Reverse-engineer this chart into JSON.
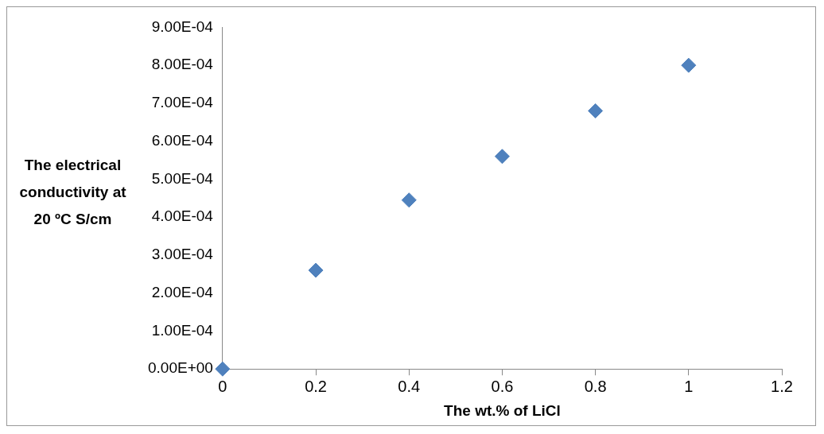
{
  "chart_data": {
    "type": "scatter",
    "xlabel": "The wt.% of LiCl",
    "ylabel": "The electrical conductivity at 20 ºC S/cm",
    "x": [
      0,
      0.2,
      0.4,
      0.6,
      0.8,
      1
    ],
    "series": [
      {
        "color": "#4f81bd",
        "values": [
          0,
          0.00026,
          0.000445,
          0.00056,
          0.00068,
          0.0008
        ]
      }
    ],
    "xlim": [
      0,
      1.2
    ],
    "xticks": [
      0,
      0.2,
      0.4,
      0.6,
      0.8,
      1,
      1.2
    ],
    "ylim": [
      0,
      0.0009
    ],
    "yticks": [
      {
        "value": 0,
        "label": "0.00E+00"
      },
      {
        "value": 0.0001,
        "label": "1.00E-04"
      },
      {
        "value": 0.0002,
        "label": "2.00E-04"
      },
      {
        "value": 0.0003,
        "label": "3.00E-04"
      },
      {
        "value": 0.0004,
        "label": "4.00E-04"
      },
      {
        "value": 0.0005,
        "label": "5.00E-04"
      },
      {
        "value": 0.0006,
        "label": "6.00E-04"
      },
      {
        "value": 0.0007,
        "label": "7.00E-04"
      },
      {
        "value": 0.0008,
        "label": "8.00E-04"
      },
      {
        "value": 0.0009,
        "label": "9.00E-04"
      }
    ],
    "grid": false,
    "legend": false,
    "marker": "diamond"
  }
}
